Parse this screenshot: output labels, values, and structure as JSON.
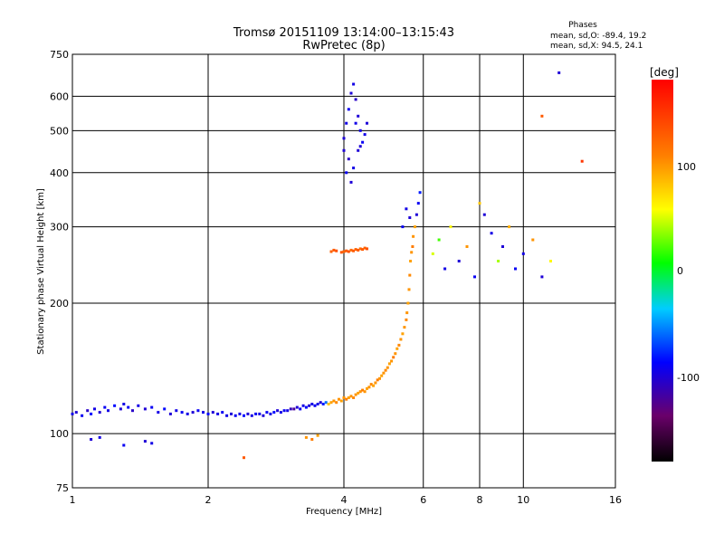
{
  "chart_data": {
    "type": "scatter",
    "title": "Tromsø 20151109 13:14:00–13:15:43",
    "subtitle": "RwPretec (8p)",
    "stats": {
      "heading": "Phases",
      "line1": "mean, sd,O: -89.4, 19.2",
      "line2": "mean, sd,X:  94.5, 24.1"
    },
    "xlabel": "Frequency [MHz]",
    "ylabel": "Stationary phase Virtual Height [km]",
    "x_scale": "log",
    "y_scale": "log",
    "xlim": [
      1,
      16
    ],
    "ylim": [
      75,
      750
    ],
    "x_ticks": [
      1,
      2,
      4,
      6,
      8,
      10,
      16
    ],
    "x_tick_labels": [
      "1",
      "2",
      "4",
      "6",
      "8",
      "10",
      "16"
    ],
    "y_ticks": [
      75,
      100,
      200,
      300,
      400,
      500,
      600,
      750
    ],
    "y_tick_labels": [
      "75",
      "100",
      "200",
      "300",
      "400",
      "500",
      "600",
      "750"
    ],
    "grid": true,
    "colorbar": {
      "label": "[deg]",
      "range": [
        -180,
        180
      ],
      "ticks": [
        100,
        0,
        -100
      ],
      "tick_labels": [
        "100",
        "0",
        "-100"
      ]
    },
    "series": [
      {
        "points": [
          [
            1.0,
            111,
            -95
          ],
          [
            1.02,
            112,
            -100
          ],
          [
            1.05,
            110,
            -90
          ],
          [
            1.08,
            113,
            -105
          ],
          [
            1.1,
            111,
            -85
          ],
          [
            1.12,
            114,
            -95
          ],
          [
            1.15,
            112,
            -100
          ],
          [
            1.18,
            115,
            -90
          ],
          [
            1.2,
            113,
            -95
          ],
          [
            1.24,
            116,
            -85
          ],
          [
            1.28,
            114,
            -100
          ],
          [
            1.3,
            117,
            -95
          ],
          [
            1.33,
            115,
            -90
          ],
          [
            1.36,
            113,
            -105
          ],
          [
            1.4,
            116,
            -95
          ],
          [
            1.45,
            114,
            -100
          ],
          [
            1.5,
            115,
            -90
          ],
          [
            1.55,
            112,
            -95
          ],
          [
            1.6,
            114,
            -85
          ],
          [
            1.65,
            111,
            -100
          ],
          [
            1.7,
            113,
            -95
          ],
          [
            1.75,
            112,
            -90
          ],
          [
            1.8,
            111,
            -95
          ],
          [
            1.85,
            112,
            -100
          ],
          [
            1.9,
            113,
            -90
          ],
          [
            1.95,
            112,
            -95
          ],
          [
            2.0,
            111,
            -85
          ],
          [
            2.05,
            112,
            -100
          ],
          [
            2.1,
            111,
            -95
          ],
          [
            2.15,
            112,
            -90
          ],
          [
            2.2,
            110,
            -95
          ],
          [
            2.25,
            111,
            -100
          ],
          [
            2.3,
            110,
            -90
          ],
          [
            2.35,
            111,
            -95
          ],
          [
            2.4,
            110,
            -85
          ],
          [
            2.45,
            111,
            -100
          ],
          [
            2.5,
            110,
            -95
          ],
          [
            2.55,
            111,
            -90
          ],
          [
            2.6,
            111,
            -95
          ],
          [
            2.65,
            110,
            -100
          ],
          [
            2.7,
            112,
            -90
          ],
          [
            2.75,
            111,
            -95
          ],
          [
            2.8,
            112,
            -85
          ],
          [
            2.85,
            113,
            -100
          ],
          [
            2.9,
            112,
            -95
          ],
          [
            2.95,
            113,
            -90
          ],
          [
            3.0,
            113,
            -95
          ],
          [
            3.05,
            114,
            -110
          ],
          [
            3.1,
            114,
            -120
          ],
          [
            3.15,
            115,
            -100
          ],
          [
            3.2,
            114,
            -90
          ],
          [
            3.25,
            116,
            -95
          ],
          [
            3.3,
            115,
            -85
          ],
          [
            3.35,
            116,
            -100
          ],
          [
            3.4,
            117,
            -95
          ],
          [
            3.45,
            116,
            -90
          ],
          [
            3.5,
            117,
            -95
          ],
          [
            3.55,
            118,
            -100
          ],
          [
            3.6,
            117,
            -80
          ],
          [
            3.65,
            118,
            -60
          ],
          [
            3.7,
            117,
            80
          ],
          [
            3.75,
            118,
            95
          ],
          [
            3.8,
            119,
            100
          ],
          [
            3.85,
            118,
            105
          ],
          [
            3.9,
            120,
            100
          ],
          [
            3.95,
            119,
            95
          ],
          [
            4.0,
            121,
            100
          ],
          [
            4.05,
            120,
            110
          ],
          [
            4.1,
            121,
            95
          ],
          [
            4.15,
            122,
            100
          ],
          [
            4.2,
            121,
            105
          ],
          [
            4.25,
            123,
            100
          ],
          [
            4.3,
            124,
            95
          ],
          [
            4.35,
            125,
            100
          ],
          [
            4.4,
            126,
            110
          ],
          [
            4.45,
            125,
            100
          ],
          [
            4.5,
            127,
            95
          ],
          [
            4.55,
            128,
            100
          ],
          [
            4.6,
            130,
            105
          ],
          [
            4.65,
            129,
            95
          ],
          [
            4.7,
            131,
            100
          ],
          [
            4.75,
            133,
            110
          ],
          [
            4.8,
            134,
            100
          ],
          [
            4.85,
            136,
            95
          ],
          [
            4.9,
            138,
            100
          ],
          [
            4.95,
            140,
            105
          ],
          [
            5.0,
            142,
            100
          ],
          [
            5.05,
            145,
            95
          ],
          [
            5.1,
            147,
            100
          ],
          [
            5.15,
            150,
            110
          ],
          [
            5.2,
            153,
            100
          ],
          [
            5.25,
            157,
            95
          ],
          [
            5.3,
            160,
            105
          ],
          [
            5.35,
            165,
            100
          ],
          [
            5.4,
            170,
            95
          ],
          [
            5.45,
            176,
            100
          ],
          [
            5.5,
            183,
            105
          ],
          [
            5.52,
            190,
            100
          ],
          [
            5.55,
            200,
            95
          ],
          [
            5.58,
            215,
            100
          ],
          [
            5.6,
            232,
            105
          ],
          [
            5.62,
            250,
            95
          ],
          [
            5.65,
            262,
            100
          ],
          [
            5.68,
            270,
            110
          ],
          [
            3.95,
            262,
            130
          ],
          [
            4.0,
            263,
            125
          ],
          [
            4.05,
            264,
            130
          ],
          [
            4.1,
            263,
            135
          ],
          [
            4.15,
            265,
            120
          ],
          [
            4.2,
            264,
            130
          ],
          [
            4.25,
            266,
            125
          ],
          [
            4.3,
            265,
            130
          ],
          [
            4.35,
            267,
            120
          ],
          [
            4.4,
            266,
            130
          ],
          [
            4.45,
            268,
            125
          ],
          [
            4.5,
            267,
            135
          ],
          [
            3.85,
            264,
            135
          ],
          [
            3.8,
            265,
            130
          ],
          [
            3.75,
            263,
            125
          ],
          [
            5.7,
            285,
            100
          ],
          [
            5.75,
            300,
            95
          ],
          [
            5.8,
            320,
            -100
          ],
          [
            5.85,
            340,
            -90
          ],
          [
            5.9,
            360,
            -80
          ],
          [
            5.5,
            330,
            -95
          ],
          [
            5.6,
            315,
            -100
          ],
          [
            5.4,
            300,
            -90
          ],
          [
            4.0,
            480,
            -100
          ],
          [
            4.05,
            520,
            -95
          ],
          [
            4.1,
            560,
            -90
          ],
          [
            4.15,
            610,
            -100
          ],
          [
            4.2,
            640,
            -95
          ],
          [
            4.25,
            590,
            -105
          ],
          [
            4.3,
            540,
            -100
          ],
          [
            4.35,
            500,
            -95
          ],
          [
            4.4,
            470,
            -90
          ],
          [
            4.0,
            450,
            -100
          ],
          [
            4.1,
            430,
            -105
          ],
          [
            4.2,
            410,
            -95
          ],
          [
            4.3,
            450,
            -100
          ],
          [
            4.45,
            490,
            -95
          ],
          [
            4.5,
            520,
            -100
          ],
          [
            4.05,
            400,
            -90
          ],
          [
            4.15,
            380,
            -100
          ],
          [
            4.25,
            520,
            -95
          ],
          [
            4.35,
            460,
            -100
          ],
          [
            6.3,
            260,
            50
          ],
          [
            6.5,
            280,
            20
          ],
          [
            6.7,
            240,
            -95
          ],
          [
            6.9,
            300,
            60
          ],
          [
            7.2,
            250,
            -100
          ],
          [
            7.5,
            270,
            100
          ],
          [
            7.8,
            230,
            -90
          ],
          [
            8.0,
            340,
            80
          ],
          [
            8.2,
            320,
            -100
          ],
          [
            8.5,
            290,
            -95
          ],
          [
            8.8,
            250,
            40
          ],
          [
            9.0,
            270,
            -100
          ],
          [
            9.3,
            300,
            90
          ],
          [
            9.6,
            240,
            -90
          ],
          [
            10.0,
            260,
            -95
          ],
          [
            10.5,
            280,
            100
          ],
          [
            11.0,
            230,
            -100
          ],
          [
            11.5,
            250,
            60
          ],
          [
            12.0,
            680,
            -100
          ],
          [
            11.0,
            540,
            130
          ],
          [
            13.5,
            425,
            150
          ],
          [
            3.3,
            98,
            100
          ],
          [
            3.4,
            97,
            110
          ],
          [
            3.5,
            99,
            95
          ],
          [
            2.4,
            88,
            130
          ],
          [
            1.45,
            96,
            -100
          ],
          [
            1.5,
            95,
            -95
          ],
          [
            1.3,
            94,
            -90
          ],
          [
            1.1,
            97,
            -100
          ],
          [
            1.15,
            98,
            -95
          ]
        ]
      }
    ]
  }
}
